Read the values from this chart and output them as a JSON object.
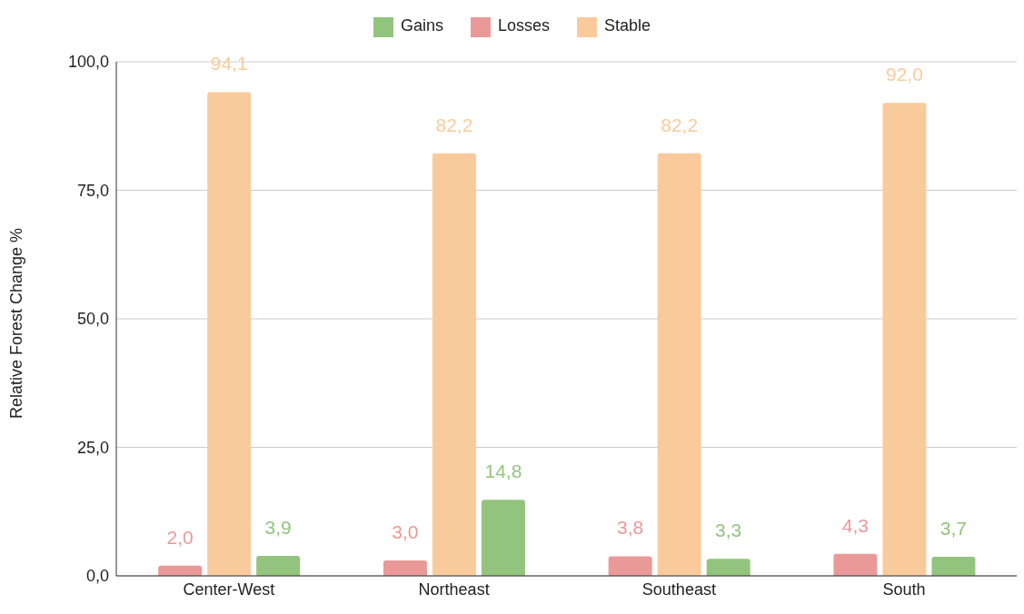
{
  "chart_data": {
    "type": "bar",
    "ylabel": "Relative Forest Change %",
    "categories": [
      "Center-West",
      "Northeast",
      "Southeast",
      "South"
    ],
    "series": [
      {
        "name": "Losses",
        "color": "#ea9999",
        "values": [
          2.0,
          3.0,
          3.8,
          4.3
        ],
        "value_labels": [
          "2,0",
          "3,0",
          "3,8",
          "4,3"
        ]
      },
      {
        "name": "Stable",
        "color": "#f9cb9c",
        "values": [
          94.1,
          82.2,
          82.2,
          92.0
        ],
        "value_labels": [
          "94,1",
          "82,2",
          "82,2",
          "92,0"
        ]
      },
      {
        "name": "Gains",
        "color": "#93c47d",
        "values": [
          3.9,
          14.8,
          3.3,
          3.7
        ],
        "value_labels": [
          "3,9",
          "14,8",
          "3,3",
          "3,7"
        ]
      }
    ],
    "ylim": [
      0,
      100
    ],
    "yticks": [
      {
        "value": 0,
        "label": "0,0"
      },
      {
        "value": 25,
        "label": "25,0"
      },
      {
        "value": 50,
        "label": "50,0"
      },
      {
        "value": 75,
        "label": "75,0"
      },
      {
        "value": 100,
        "label": "100,0"
      }
    ],
    "grid": "y",
    "legend": "top"
  }
}
